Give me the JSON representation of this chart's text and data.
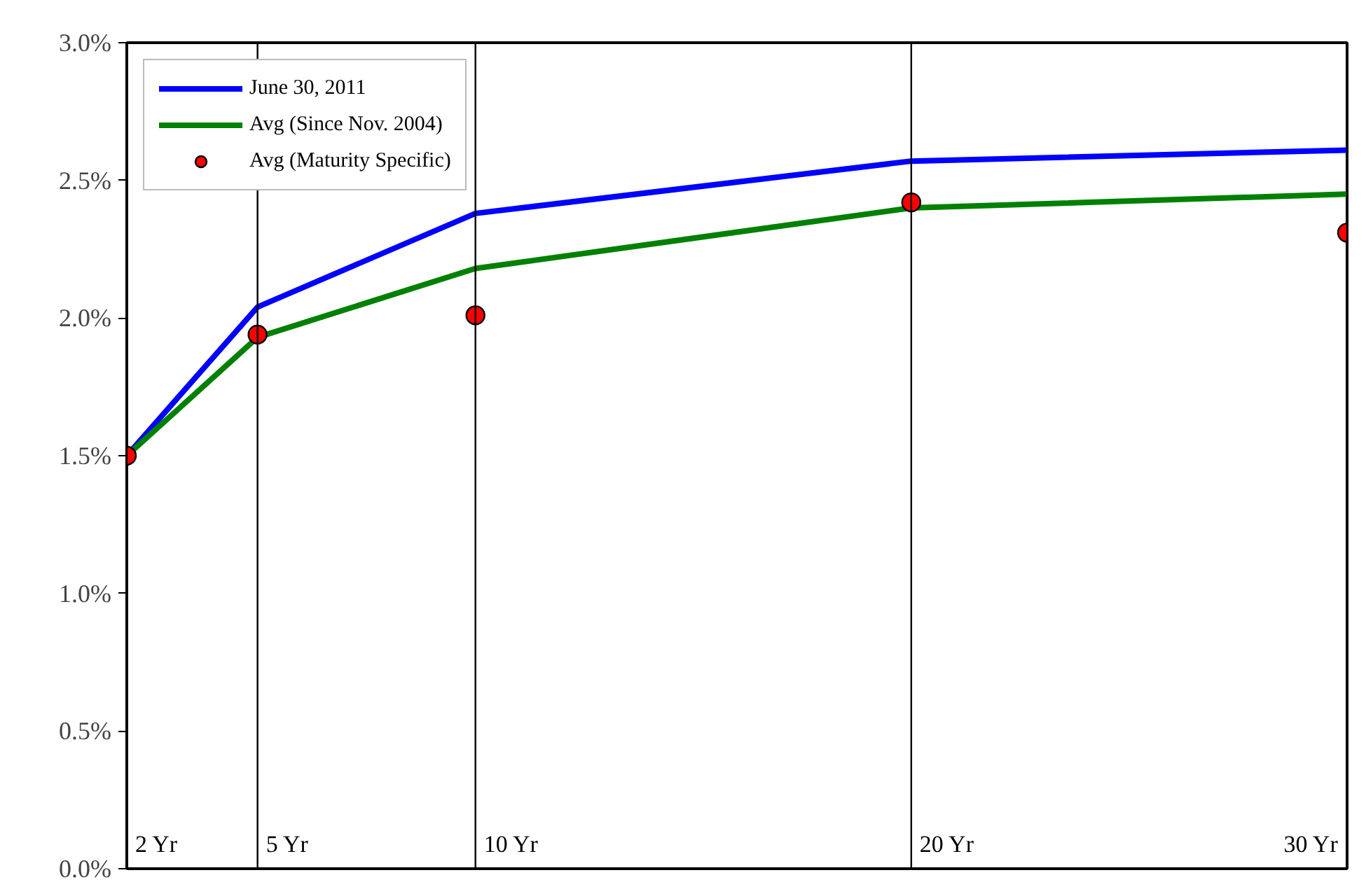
{
  "chart_data": {
    "type": "line",
    "x": [
      2,
      5,
      10,
      20,
      30
    ],
    "xlim": [
      2,
      30
    ],
    "ylim": [
      0,
      3
    ],
    "yticks": [
      {
        "value": 0,
        "label": "0.0%"
      },
      {
        "value": 0.5,
        "label": "0.5%"
      },
      {
        "value": 1,
        "label": "1.0%"
      },
      {
        "value": 1.5,
        "label": "1.5%"
      },
      {
        "value": 2,
        "label": "2.0%"
      },
      {
        "value": 2.5,
        "label": "2.5%"
      },
      {
        "value": 3,
        "label": "3.0%"
      }
    ],
    "tick_labels": "y",
    "grid": false,
    "legend": "top left",
    "series": [
      {
        "name": "June 30, 2011",
        "color": "#0000ff",
        "values": [
          1.5,
          2.04,
          2.38,
          2.57,
          2.61
        ]
      },
      {
        "name": "Avg (Since Nov. 2004)",
        "color": "#008000",
        "values": [
          1.5,
          1.93,
          2.18,
          2.4,
          2.45
        ]
      },
      {
        "name": "Avg (Maturity Specific)",
        "color": "#ff0000",
        "type": "scatter",
        "marker": "circle",
        "values": [
          1.5,
          1.94,
          2.01,
          2.42,
          2.31
        ]
      }
    ],
    "ref_lines": [
      {
        "axis": "x",
        "value": 2,
        "label": "2 Yr",
        "color": "#000000"
      },
      {
        "axis": "x",
        "value": 5,
        "label": "5 Yr",
        "color": "#000000"
      },
      {
        "axis": "x",
        "value": 10,
        "label": "10 Yr",
        "color": "#000000"
      },
      {
        "axis": "x",
        "value": 20,
        "label": "20 Yr",
        "color": "#000000"
      },
      {
        "axis": "x",
        "value": 30,
        "label": "30 Yr",
        "color": "#000000"
      }
    ]
  }
}
